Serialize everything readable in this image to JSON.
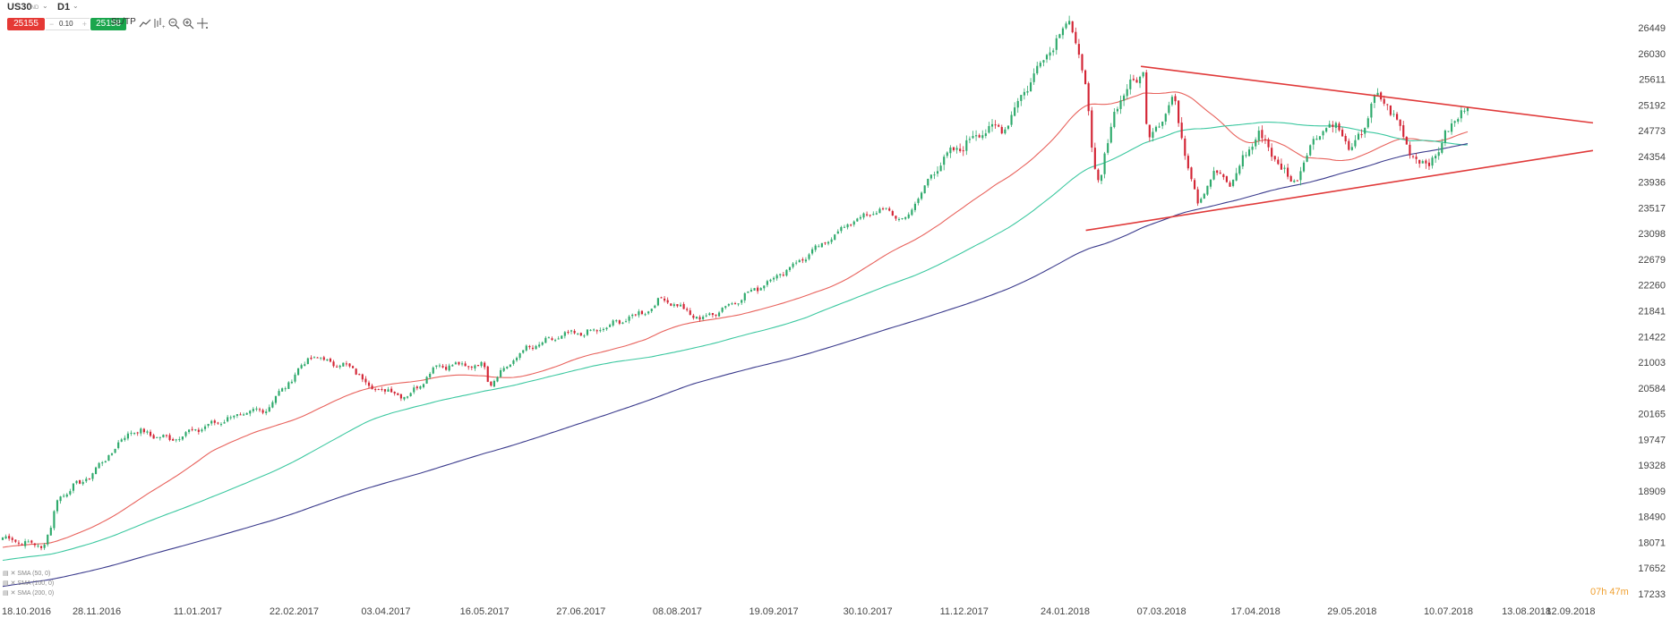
{
  "toolbar": {
    "symbol": "US30",
    "symbol_sub": "IND",
    "timeframe": "D1",
    "sell_price": "25155",
    "lot": "0.10",
    "buy_price": "25158",
    "sltp_label": "SL/TP",
    "icons": [
      "line-chart-icon",
      "indicators-icon",
      "zoom-out-icon",
      "zoom-in-icon",
      "crosshair-icon"
    ]
  },
  "legend": [
    "SMA (50, 0)",
    "SMA (100, 0)",
    "SMA (200, 0)"
  ],
  "countdown": {
    "hours": "07h",
    "minutes": "47m"
  },
  "colors": {
    "bull": "#2eaa6c",
    "bear": "#d32535",
    "sma50": "#e8625c",
    "sma100": "#3cc8a0",
    "sma200": "#3a3a8c",
    "trendline": "#e03a3a",
    "countdown": "#f0a030"
  },
  "chart_data": {
    "type": "candlestick",
    "symbol": "US30",
    "timeframe": "D1",
    "x_ticks": [
      "18.10.2016",
      "28.11.2016",
      "11.01.2017",
      "22.02.2017",
      "03.04.2017",
      "16.05.2017",
      "27.06.2017",
      "08.08.2017",
      "19.09.2017",
      "30.10.2017",
      "11.12.2017",
      "24.01.2018",
      "07.03.2018",
      "17.04.2018",
      "29.05.2018",
      "10.07.2018",
      "13.08.2018",
      "12.09.2018"
    ],
    "y_ticks": [
      17233,
      17652,
      18071,
      18490,
      18909,
      19328,
      19747,
      20165,
      20584,
      21003,
      21422,
      21841,
      22260,
      22679,
      23098,
      23517,
      23936,
      24354,
      24773,
      25192,
      25611,
      26030,
      26449
    ],
    "ylim": [
      17233,
      26700
    ],
    "last_date": "19.07.2018",
    "last_close": 25155,
    "anchors": [
      [
        "18.10.2016",
        18150
      ],
      [
        "04.11.2016",
        18000
      ],
      [
        "08.11.2016",
        18300
      ],
      [
        "11.11.2016",
        18800
      ],
      [
        "25.11.2016",
        19150
      ],
      [
        "13.12.2016",
        19900
      ],
      [
        "30.12.2016",
        19750
      ],
      [
        "25.01.2017",
        20100
      ],
      [
        "10.02.2017",
        20250
      ],
      [
        "01.03.2017",
        21100
      ],
      [
        "20.03.2017",
        20900
      ],
      [
        "27.03.2017",
        20600
      ],
      [
        "13.04.2017",
        20450
      ],
      [
        "25.04.2017",
        20950
      ],
      [
        "16.05.2017",
        20950
      ],
      [
        "18.05.2017",
        20650
      ],
      [
        "02.06.2017",
        21200
      ],
      [
        "20.06.2017",
        21450
      ],
      [
        "03.07.2017",
        21500
      ],
      [
        "26.07.2017",
        21850
      ],
      [
        "02.08.2017",
        22050
      ],
      [
        "18.08.2017",
        21700
      ],
      [
        "29.08.2017",
        21900
      ],
      [
        "20.09.2017",
        22400
      ],
      [
        "06.10.2017",
        22800
      ],
      [
        "23.10.2017",
        23300
      ],
      [
        "06.11.2017",
        23500
      ],
      [
        "15.11.2017",
        23300
      ],
      [
        "30.11.2017",
        24250
      ],
      [
        "20.12.2017",
        24800
      ],
      [
        "28.12.2017",
        24800
      ],
      [
        "12.01.2018",
        25800
      ],
      [
        "26.01.2018",
        26600
      ],
      [
        "02.02.2018",
        25500
      ],
      [
        "05.02.2018",
        24300
      ],
      [
        "08.02.2018",
        23900
      ],
      [
        "15.02.2018",
        25200
      ],
      [
        "27.02.2018",
        25750
      ],
      [
        "01.03.2018",
        24600
      ],
      [
        "12.03.2018",
        25300
      ],
      [
        "23.03.2018",
        23550
      ],
      [
        "29.03.2018",
        24100
      ],
      [
        "06.04.2018",
        23900
      ],
      [
        "18.04.2018",
        24750
      ],
      [
        "03.05.2018",
        23900
      ],
      [
        "15.05.2018",
        24800
      ],
      [
        "23.05.2018",
        24850
      ],
      [
        "29.05.2018",
        24400
      ],
      [
        "08.06.2018",
        25300
      ],
      [
        "13.06.2018",
        25250
      ],
      [
        "22.06.2018",
        24550
      ],
      [
        "28.06.2018",
        24200
      ],
      [
        "02.07.2018",
        24300
      ],
      [
        "06.07.2018",
        24450
      ],
      [
        "12.07.2018",
        24950
      ],
      [
        "19.07.2018",
        25150
      ]
    ],
    "series": [
      {
        "name": "SMA (50, 0)",
        "period": 50
      },
      {
        "name": "SMA (100, 0)",
        "period": 100
      },
      {
        "name": "SMA (200, 0)",
        "period": 200
      }
    ],
    "trendlines": [
      {
        "from": [
          "26.02.2018",
          25820
        ],
        "to": [
          "11.09.2018",
          24900
        ]
      },
      {
        "from": [
          "02.02.2018",
          23150
        ],
        "to": [
          "11.09.2018",
          24450
        ]
      }
    ]
  }
}
